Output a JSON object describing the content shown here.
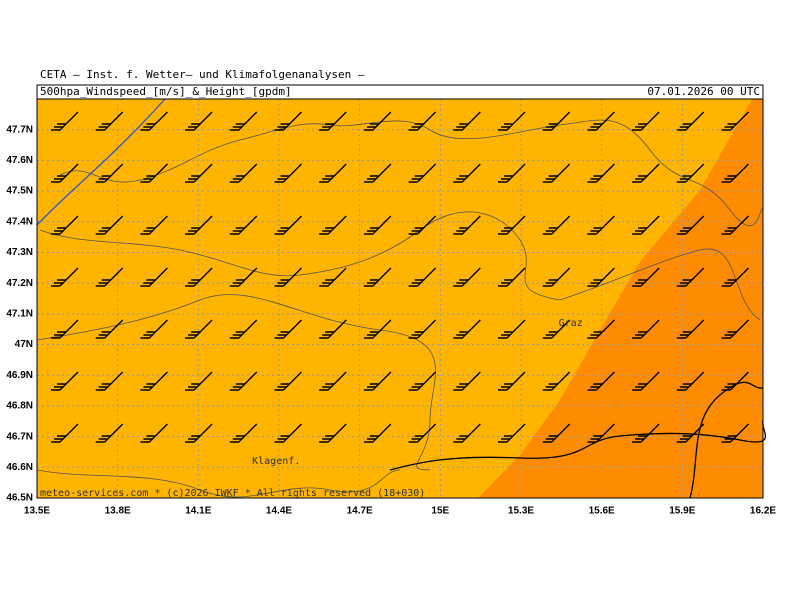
{
  "header": {
    "institute": "CETA – Inst. f. Wetter– und Klimafolgenanalysen –",
    "product": "500hpa_Windspeed_[m/s]_&_Height_[gpdm]",
    "valid_time": "07.01.2026 00 UTC"
  },
  "map": {
    "lonlim": [
      13.5,
      16.2
    ],
    "latlim": [
      46.5,
      47.8
    ],
    "lon_ticks": [
      {
        "value": 13.5,
        "label": "13.5E"
      },
      {
        "value": 13.8,
        "label": "13.8E"
      },
      {
        "value": 14.1,
        "label": "14.1E"
      },
      {
        "value": 14.4,
        "label": "14.4E"
      },
      {
        "value": 14.7,
        "label": "14.7E"
      },
      {
        "value": 15,
        "label": "15E"
      },
      {
        "value": 15.3,
        "label": "15.3E"
      },
      {
        "value": 15.6,
        "label": "15.6E"
      },
      {
        "value": 15.9,
        "label": "15.9E"
      },
      {
        "value": 16.2,
        "label": "16.2E"
      }
    ],
    "lat_ticks": [
      {
        "value": 46.5,
        "label": "46.5N"
      },
      {
        "value": 46.6,
        "label": "46.6N"
      },
      {
        "value": 46.7,
        "label": "46.7N"
      },
      {
        "value": 46.8,
        "label": "46.8N"
      },
      {
        "value": 46.9,
        "label": "46.9N"
      },
      {
        "value": 47,
        "label": "47N"
      },
      {
        "value": 47.1,
        "label": "47.1N"
      },
      {
        "value": 47.2,
        "label": "47.2N"
      },
      {
        "value": 47.3,
        "label": "47.3N"
      },
      {
        "value": 47.4,
        "label": "47.4N"
      },
      {
        "value": 47.5,
        "label": "47.5N"
      },
      {
        "value": 47.6,
        "label": "47.6N"
      },
      {
        "value": 47.7,
        "label": "47.7N"
      }
    ],
    "places": [
      {
        "name": "Graz",
        "lon": 15.44,
        "lat": 47.07
      },
      {
        "name": "Klagenf.",
        "lon": 14.3,
        "lat": 46.62
      }
    ],
    "footer": "meteo-services.com * (c)2026 IWKF * All rights reserved (18+030)"
  }
}
